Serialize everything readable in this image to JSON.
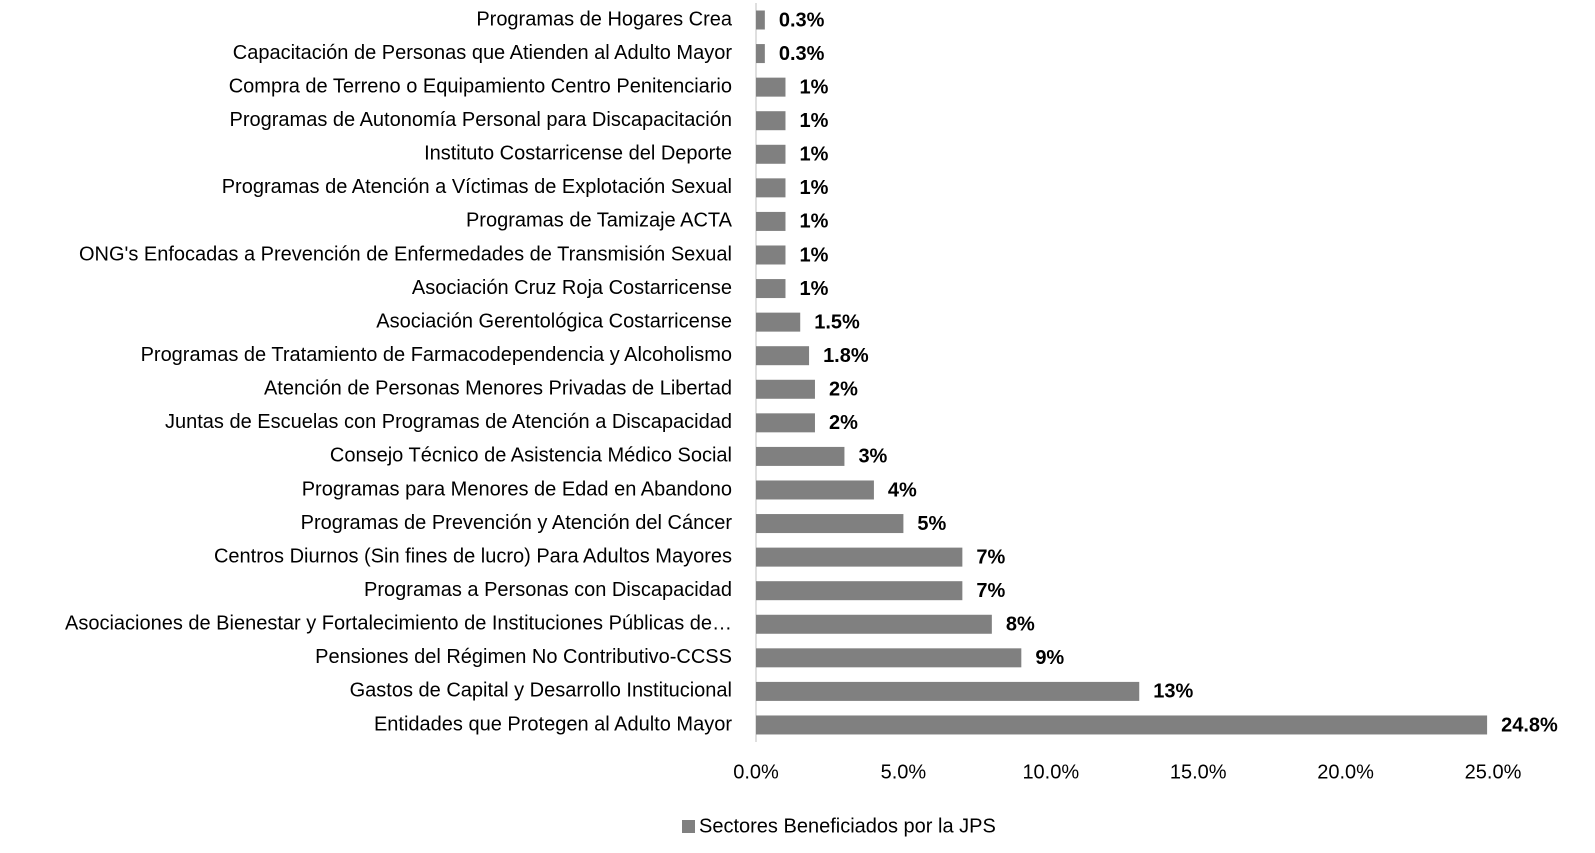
{
  "chart_data": {
    "type": "barh",
    "categories": [
      "Programas de Hogares Crea",
      "Capacitación de Personas que Atienden al Adulto Mayor",
      "Compra de Terreno o Equipamiento Centro Penitenciario",
      "Programas de Autonomía Personal para Discapacitación",
      "Instituto Costarricense del Deporte",
      "Programas de Atención a Víctimas de Explotación Sexual",
      "Programas de Tamizaje ACTA",
      "ONG's Enfocadas a Prevención de Enfermedades de Transmisión Sexual",
      "Asociación Cruz Roja Costarricense",
      "Asociación Gerentológica Costarricense",
      "Programas de Tratamiento de Farmacodependencia y Alcoholismo",
      "Atención de Personas Menores Privadas de Libertad",
      "Juntas de Escuelas con Programas de Atención a Discapacidad",
      "Consejo Técnico de Asistencia Médico Social",
      "Programas para Menores de Edad en Abandono",
      "Programas de Prevención y Atención del Cáncer",
      "Centros Diurnos (Sin fines de lucro) Para Adultos Mayores",
      "Programas a Personas con Discapacidad",
      "Asociaciones de Bienestar y Fortalecimiento de Instituciones Públicas de…",
      "Pensiones del Régimen No Contributivo-CCSS",
      "Gastos de Capital y Desarrollo Institucional",
      "Entidades que Protegen al Adulto Mayor"
    ],
    "series": [
      {
        "name": "Sectores Beneficiados por la JPS",
        "color": "#808080",
        "values": [
          0.3,
          0.3,
          1,
          1,
          1,
          1,
          1,
          1,
          1,
          1.5,
          1.8,
          2,
          2,
          3,
          4,
          5,
          7,
          7,
          8,
          9,
          13,
          24.8
        ],
        "value_labels": [
          "0.3%",
          "0.3%",
          "1%",
          "1%",
          "1%",
          "1%",
          "1%",
          "1%",
          "1%",
          "1.5%",
          "1.8%",
          "2%",
          "2%",
          "3%",
          "4%",
          "5%",
          "7%",
          "7%",
          "8%",
          "9%",
          "13%",
          "24.8%"
        ]
      }
    ],
    "xlim": [
      0,
      25
    ],
    "xticks": [
      {
        "value": 0,
        "label": "0.0%"
      },
      {
        "value": 5,
        "label": "5.0%"
      },
      {
        "value": 10,
        "label": "10.0%"
      },
      {
        "value": 15,
        "label": "15.0%"
      },
      {
        "value": 20,
        "label": "20.0%"
      },
      {
        "value": 25,
        "label": "25.0%"
      }
    ],
    "legend": "bottom"
  }
}
